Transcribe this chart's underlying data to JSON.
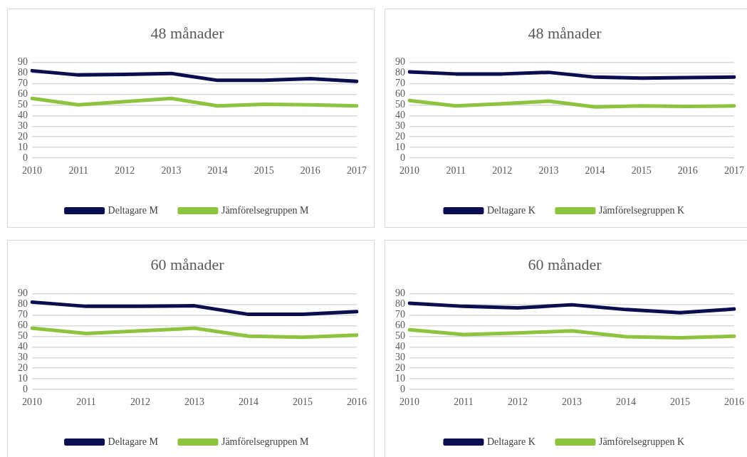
{
  "chart_data": [
    {
      "type": "line",
      "title": "48 månader",
      "categories": [
        "2010",
        "2011",
        "2012",
        "2013",
        "2014",
        "2015",
        "2016",
        "2017"
      ],
      "series": [
        {
          "name": "Deltagare M",
          "color": "#0b0e4f",
          "values": [
            82,
            78,
            78.5,
            79.5,
            73,
            73,
            74.5,
            72
          ]
        },
        {
          "name": "Jämförelsegruppen M",
          "color": "#8dc33f",
          "values": [
            56,
            50,
            53,
            56,
            49,
            50.5,
            50,
            49
          ]
        }
      ],
      "ylim": [
        0,
        90
      ],
      "yticks": [
        0,
        10,
        20,
        30,
        40,
        50,
        60,
        70,
        80,
        90
      ],
      "grid": "y",
      "legend": "bottom",
      "marker": "none",
      "line_style": "solid"
    },
    {
      "type": "line",
      "title": "48 månader",
      "categories": [
        "2010",
        "2011",
        "2012",
        "2013",
        "2014",
        "2015",
        "2016",
        "2017"
      ],
      "series": [
        {
          "name": "Deltagare K",
          "color": "#0b0e4f",
          "values": [
            81,
            79,
            79,
            80.5,
            76,
            75,
            75.5,
            76
          ]
        },
        {
          "name": "Jämförelsegruppen K",
          "color": "#8dc33f",
          "values": [
            54,
            49,
            51,
            53.5,
            48,
            49,
            48.5,
            49
          ]
        }
      ],
      "ylim": [
        0,
        90
      ],
      "yticks": [
        0,
        10,
        20,
        30,
        40,
        50,
        60,
        70,
        80,
        90
      ],
      "grid": "y",
      "legend": "bottom",
      "marker": "none",
      "line_style": "solid"
    },
    {
      "type": "line",
      "title": "60 månader",
      "categories": [
        "2010",
        "2011",
        "2012",
        "2013",
        "2014",
        "2015",
        "2016"
      ],
      "series": [
        {
          "name": "Deltagare M",
          "color": "#0b0e4f",
          "values": [
            82,
            78,
            78,
            78.5,
            70.5,
            70.5,
            73
          ]
        },
        {
          "name": "Jämförelsegruppen M",
          "color": "#8dc33f",
          "values": [
            57.5,
            52.5,
            55,
            57.5,
            50,
            49,
            51
          ]
        }
      ],
      "ylim": [
        0,
        90
      ],
      "yticks": [
        0,
        10,
        20,
        30,
        40,
        50,
        60,
        70,
        80,
        90
      ],
      "grid": "y",
      "legend": "bottom",
      "marker": "none",
      "line_style": "solid"
    },
    {
      "type": "line",
      "title": "60 månader",
      "categories": [
        "2010",
        "2011",
        "2012",
        "2013",
        "2014",
        "2015",
        "2016"
      ],
      "series": [
        {
          "name": "Deltagare K",
          "color": "#0b0e4f",
          "values": [
            81,
            78,
            76.5,
            79.5,
            75,
            72,
            75.5
          ]
        },
        {
          "name": "Jämförelsegruppen K",
          "color": "#8dc33f",
          "values": [
            56,
            51.5,
            53,
            55,
            49.5,
            48.5,
            50
          ]
        }
      ],
      "ylim": [
        0,
        90
      ],
      "yticks": [
        0,
        10,
        20,
        30,
        40,
        50,
        60,
        70,
        80,
        90
      ],
      "grid": "y",
      "legend": "bottom",
      "marker": "none",
      "line_style": "solid"
    }
  ]
}
